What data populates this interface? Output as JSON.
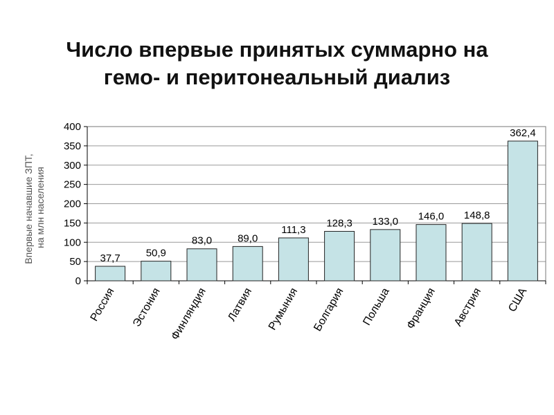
{
  "title_line1": "Число впервые принятых суммарно на",
  "title_line2": "гемо- и перитонеальный диализ",
  "colors": {
    "bar_fill": "#c5e3e6",
    "bar_stroke": "#222222",
    "grid": "#999999"
  },
  "chart_data": {
    "type": "bar",
    "ylabel": "Впервые начавшие ЗПТ, на млн населения",
    "ylabel_lines": [
      "Впервые начавшие ЗПТ,",
      "на млн населения"
    ],
    "ylim": [
      0,
      400
    ],
    "yticks": [
      0,
      50,
      100,
      150,
      200,
      250,
      300,
      350,
      400
    ],
    "grid": true,
    "categories": [
      "Россия",
      "Эстония",
      "Финляндия",
      "Латвия",
      "Румыния",
      "Болгария",
      "Польша",
      "Франция",
      "Австрия",
      "США"
    ],
    "values": [
      37.7,
      50.9,
      83.0,
      89.0,
      111.3,
      128.3,
      133.0,
      146.0,
      148.8,
      362.4
    ],
    "data_labels": [
      "37,7",
      "50,9",
      "83,0",
      "89,0",
      "111,3",
      "128,3",
      "133,0",
      "146,0",
      "148,8",
      "362,4"
    ]
  }
}
